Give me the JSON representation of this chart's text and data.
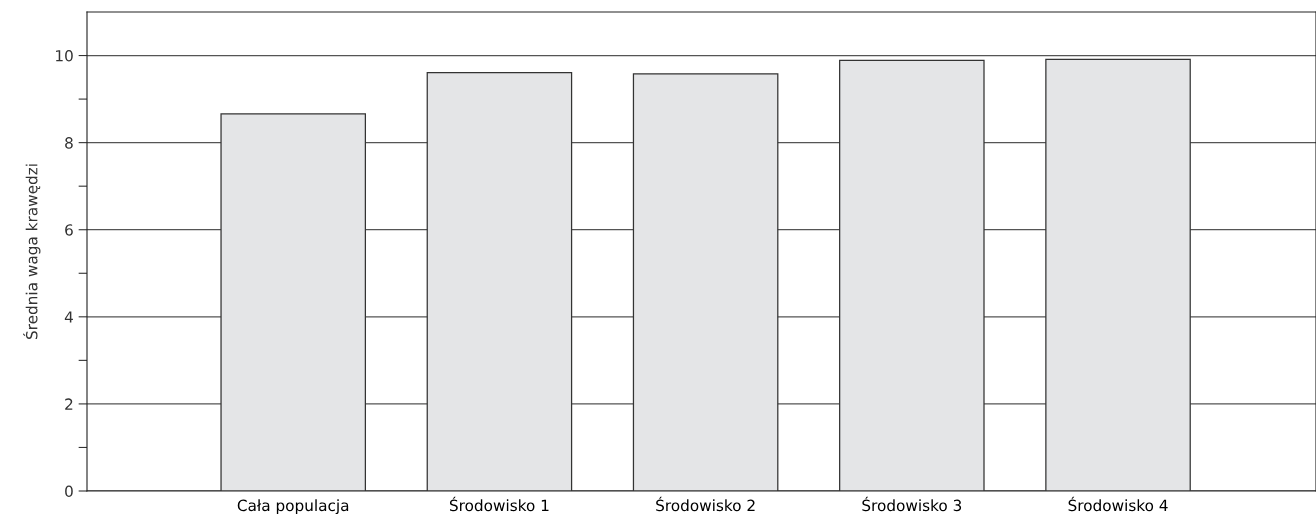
{
  "chart_data": {
    "type": "bar",
    "ylabel": "Średnia waga krawędzi",
    "categories": [
      "Cała populacja",
      "Środowisko 1",
      "Środowisko 2",
      "Środowisko 3",
      "Środowisko 4"
    ],
    "values": [
      8.66,
      9.61,
      9.58,
      9.89,
      9.91
    ],
    "color": "#e4e5e7",
    "ylim": [
      0,
      11
    ],
    "yticks": [
      0,
      {
        "value": 1,
        "label": null
      },
      2,
      {
        "value": 3,
        "label": null
      },
      4,
      {
        "value": 5,
        "label": null
      },
      6,
      {
        "value": 7,
        "label": null
      },
      8,
      {
        "value": 9,
        "label": null
      },
      10
    ],
    "grid": "y",
    "legend": false
  }
}
